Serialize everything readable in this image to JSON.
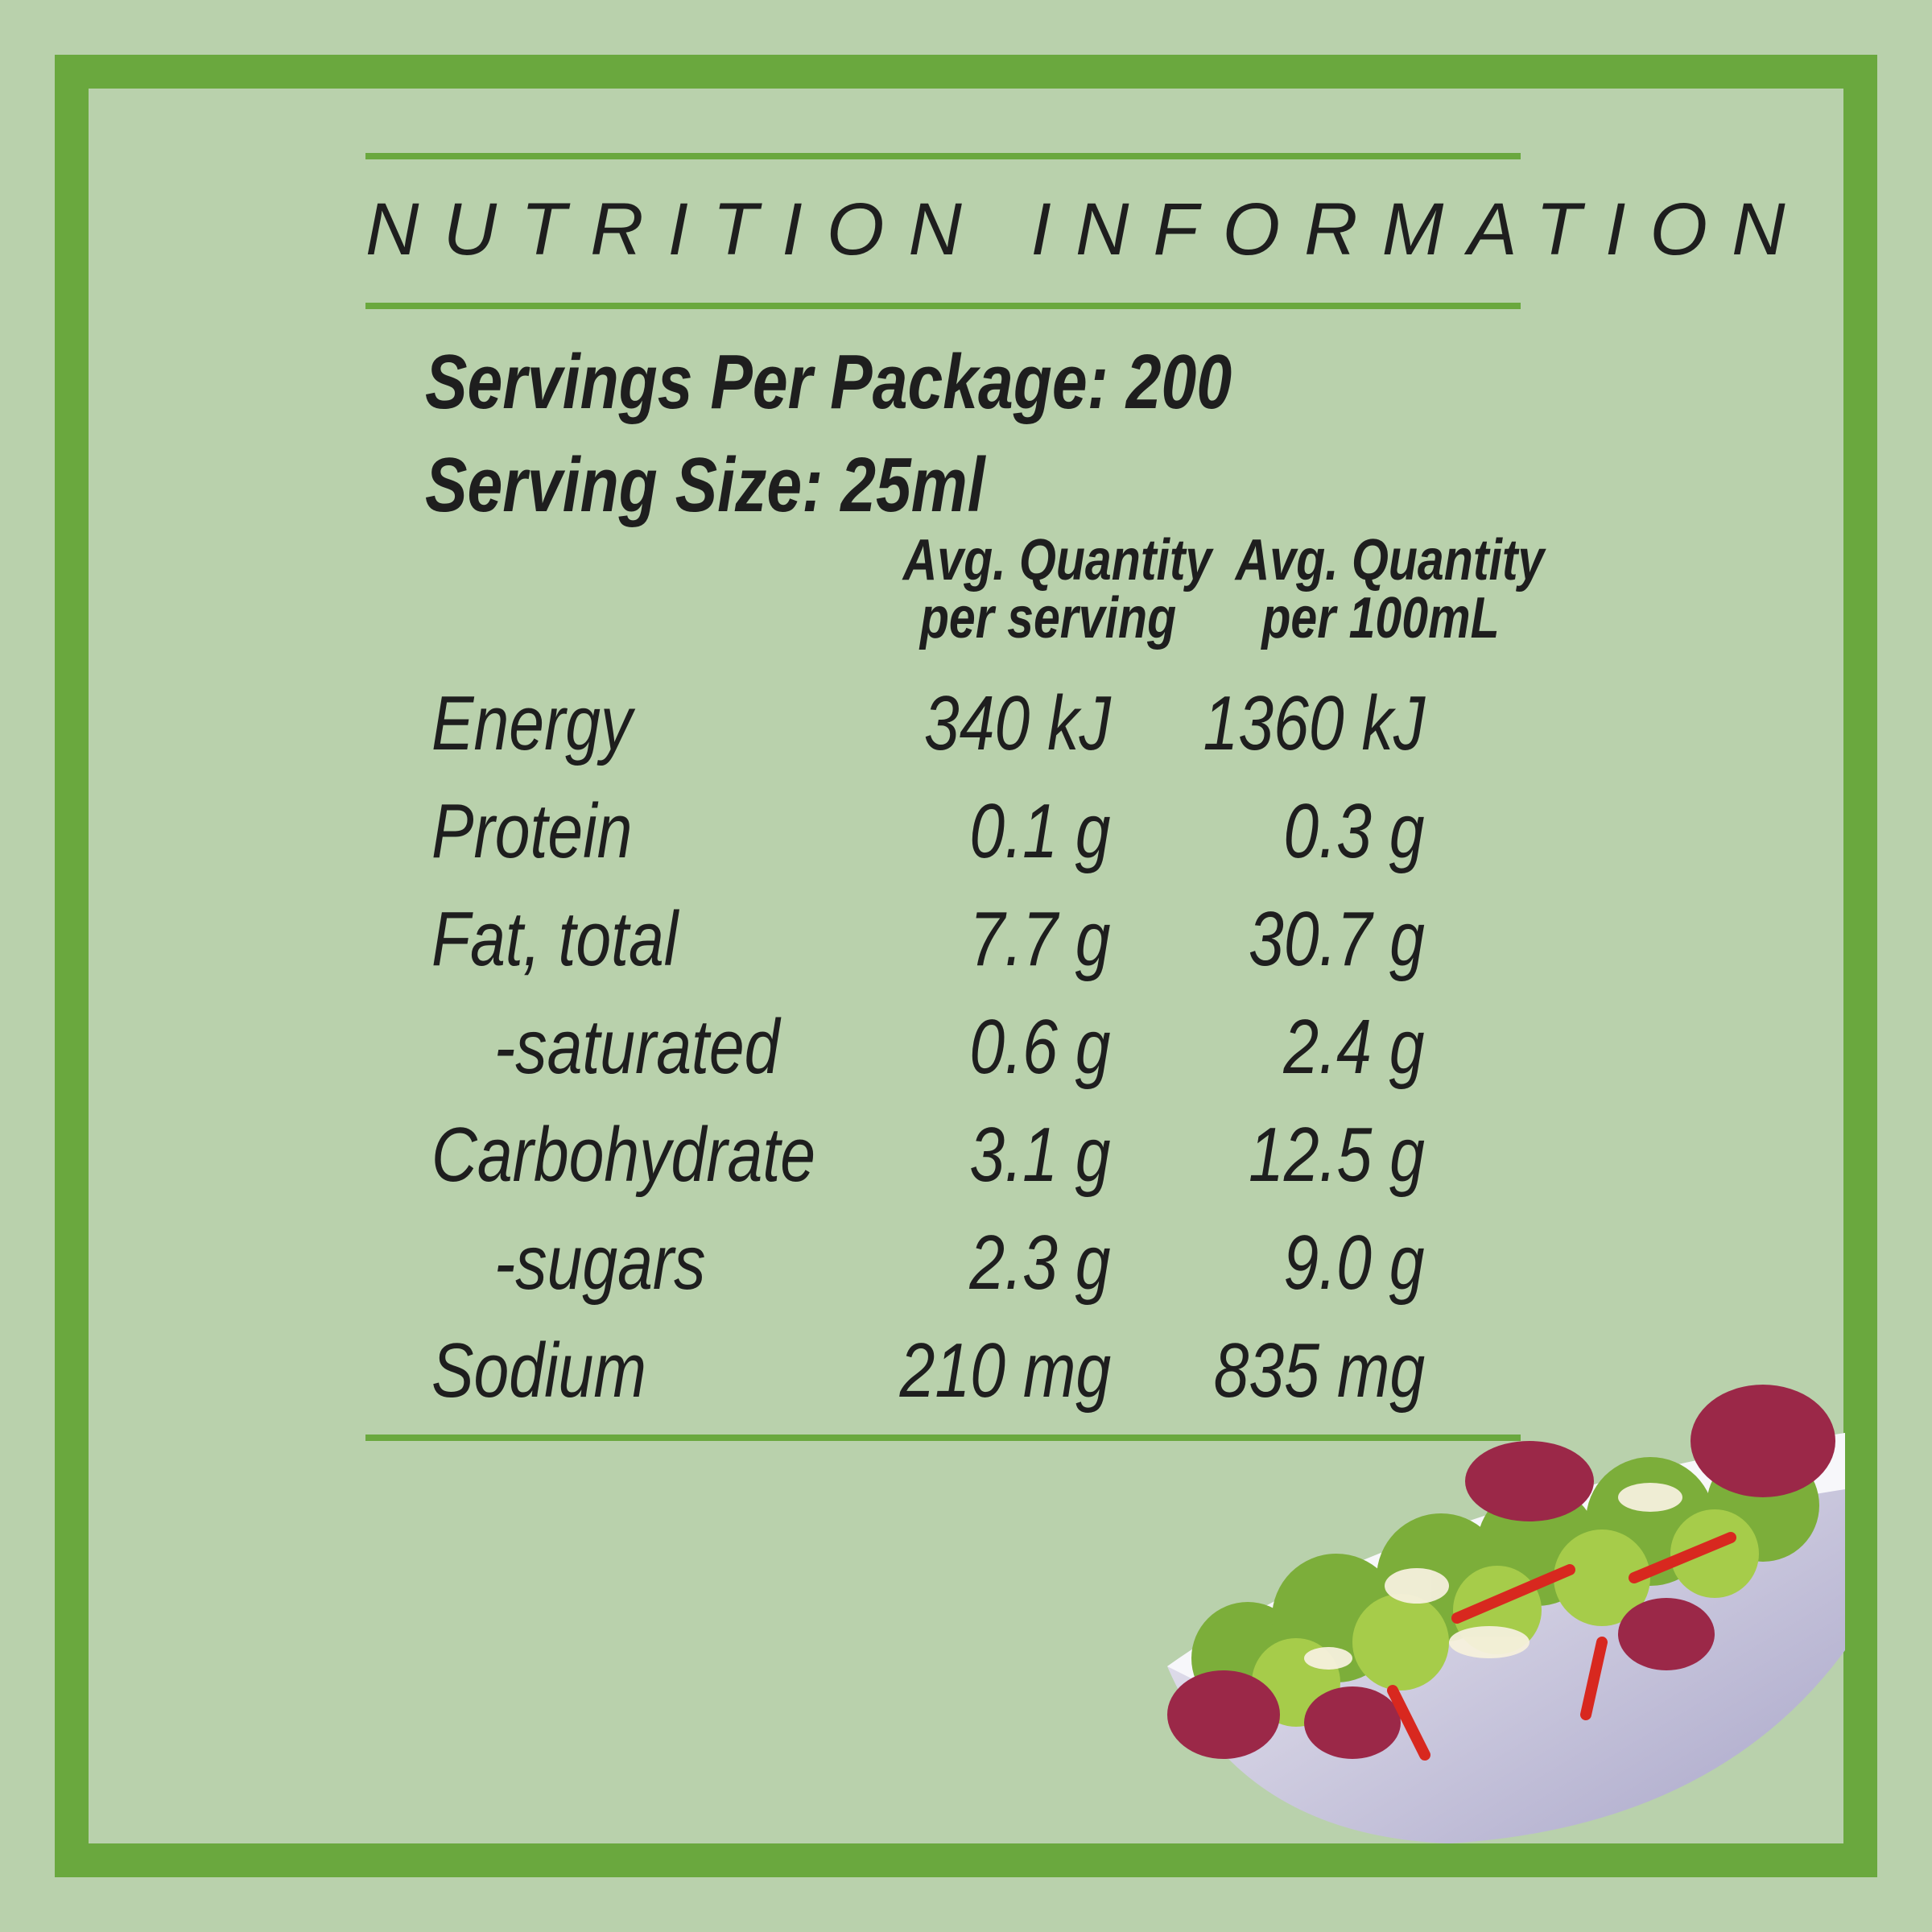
{
  "label": {
    "title": "NUTRITION INFORMATION",
    "servings_per_package": "Servings Per Package: 200",
    "serving_size": "Serving Size: 25ml",
    "columns": [
      {
        "line1": "Avg. Quantity",
        "line2": "per serving"
      },
      {
        "line1": "Avg. Quantity",
        "line2": "per 100mL"
      }
    ],
    "rows": [
      {
        "name": "Energy",
        "per_serving": "340 kJ",
        "per_100ml": "1360 kJ"
      },
      {
        "name": "Protein",
        "per_serving": "0.1 g",
        "per_100ml": "0.3 g"
      },
      {
        "name": "Fat, total",
        "per_serving": "7.7 g",
        "per_100ml": "30.7 g"
      },
      {
        "name": "-saturated",
        "per_serving": "0.6 g",
        "per_100ml": "2.4 g"
      },
      {
        "name": "Carbohydrate",
        "per_serving": "3.1 g",
        "per_100ml": "12.5 g"
      },
      {
        "name": "-sugars",
        "per_serving": "2.3 g",
        "per_100ml": "9.0 g"
      },
      {
        "name": "Sodium",
        "per_serving": "210 mg",
        "per_100ml": "835 mg"
      }
    ]
  },
  "colors": {
    "background": "#b9d1ac",
    "border_green": "#6aa83e",
    "text": "#1e1e1e"
  }
}
